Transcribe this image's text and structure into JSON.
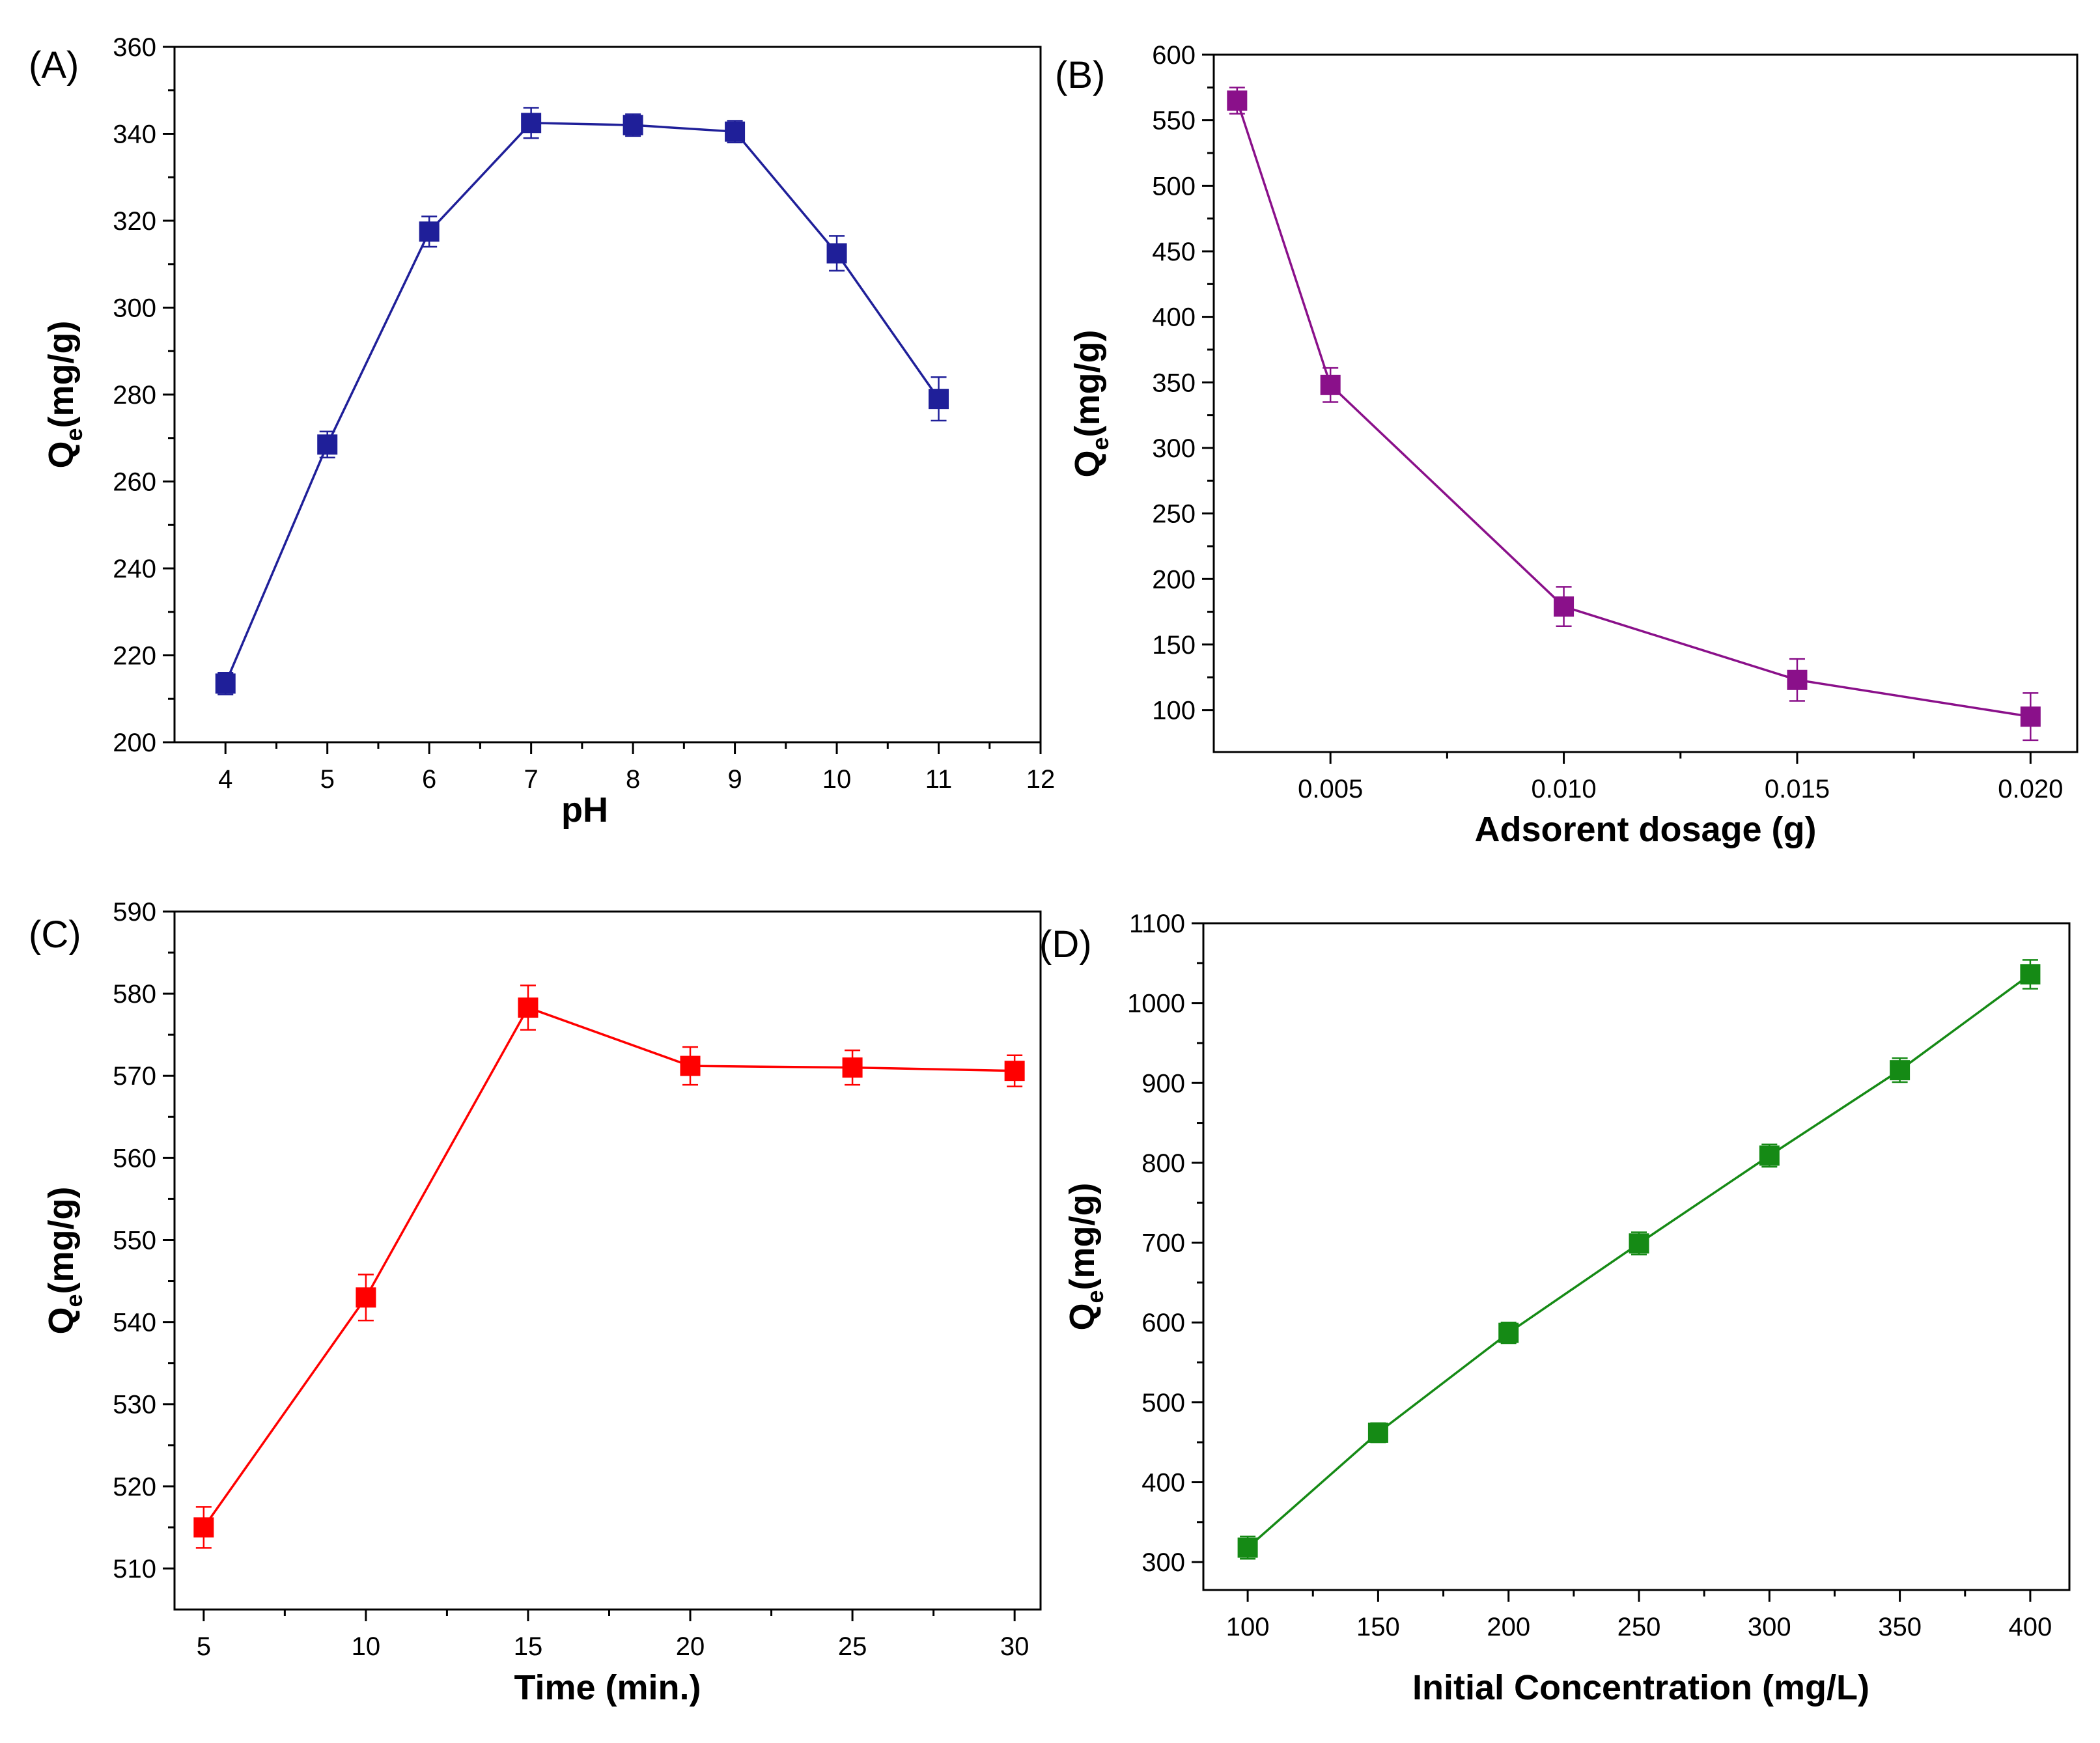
{
  "chart_data": [
    {
      "panel": "(A)",
      "type": "line",
      "xlabel": "pH",
      "ylabel_main": "Q",
      "ylabel_sub": "e",
      "ylabel_unit": "(mg/g)",
      "xlim": [
        3.5,
        12
      ],
      "ylim": [
        200,
        360
      ],
      "xticks": [
        4,
        5,
        6,
        7,
        8,
        9,
        10,
        11,
        12
      ],
      "xtick_labels": [
        "4",
        "5",
        "6",
        "7",
        "8",
        "9",
        "10",
        "11",
        "12"
      ],
      "yticks": [
        200,
        220,
        240,
        260,
        280,
        300,
        320,
        340,
        360
      ],
      "ytick_labels": [
        "200",
        "220",
        "240",
        "260",
        "280",
        "300",
        "320",
        "340",
        "360"
      ],
      "color": "#1f1f99",
      "x": [
        4,
        5,
        6,
        7,
        8,
        9,
        10,
        11
      ],
      "y": [
        213.5,
        268.5,
        317.5,
        342.5,
        342,
        340.5,
        312.5,
        279
      ],
      "yerr": [
        2.5,
        3,
        3.5,
        3.5,
        2.5,
        2.5,
        4,
        5
      ]
    },
    {
      "panel": "(B)",
      "type": "line",
      "xlabel": "Adsorent dosage (g)",
      "ylabel_main": "Q",
      "ylabel_sub": "e",
      "ylabel_unit": "(mg/g)",
      "xlim": [
        0.0025,
        0.021
      ],
      "ylim": [
        68,
        600
      ],
      "xticks": [
        0.005,
        0.01,
        0.015,
        0.02
      ],
      "xtick_labels": [
        "0.005",
        "0.010",
        "0.015",
        "0.020"
      ],
      "yticks": [
        100,
        150,
        200,
        250,
        300,
        350,
        400,
        450,
        500,
        550,
        600
      ],
      "ytick_labels": [
        "100",
        "150",
        "200",
        "250",
        "300",
        "350",
        "400",
        "450",
        "500",
        "550",
        "600"
      ],
      "color": "#8a108a",
      "x": [
        0.003,
        0.005,
        0.01,
        0.015,
        0.02
      ],
      "y": [
        565,
        348,
        179,
        123,
        95
      ],
      "yerr": [
        10,
        13,
        15,
        16,
        18
      ]
    },
    {
      "panel": "(C)",
      "type": "line",
      "xlabel": "Time (min.)",
      "ylabel_main": "Q",
      "ylabel_sub": "e",
      "ylabel_unit": "(mg/g)",
      "xlim": [
        4.1,
        30.8
      ],
      "ylim": [
        505,
        590
      ],
      "xticks": [
        5,
        10,
        15,
        20,
        25,
        30
      ],
      "xtick_labels": [
        "5",
        "10",
        "15",
        "20",
        "25",
        "30"
      ],
      "yticks": [
        510,
        520,
        530,
        540,
        550,
        560,
        570,
        580,
        590
      ],
      "ytick_labels": [
        "510",
        "520",
        "530",
        "540",
        "550",
        "560",
        "570",
        "580",
        "590"
      ],
      "color": "#ff0000",
      "x": [
        5,
        10,
        15,
        20,
        25,
        30
      ],
      "y": [
        515,
        543,
        578.3,
        571.2,
        571,
        570.6
      ],
      "yerr": [
        2.5,
        2.8,
        2.7,
        2.3,
        2.1,
        1.9
      ]
    },
    {
      "panel": "(D)",
      "type": "line",
      "xlabel": "Initial Concentration (mg/L)",
      "ylabel_main": "Q",
      "ylabel_sub": "e",
      "ylabel_unit": "(mg/g)",
      "xlim": [
        83,
        415
      ],
      "ylim": [
        265,
        1100
      ],
      "xticks": [
        100,
        150,
        200,
        250,
        300,
        350,
        400
      ],
      "xtick_labels": [
        "100",
        "150",
        "200",
        "250",
        "300",
        "350",
        "400"
      ],
      "yticks": [
        300,
        400,
        500,
        600,
        700,
        800,
        900,
        1000,
        1100
      ],
      "ytick_labels": [
        "300",
        "400",
        "500",
        "600",
        "700",
        "800",
        "900",
        "1000",
        "1100"
      ],
      "color": "#158a15",
      "x": [
        100,
        150,
        200,
        250,
        300,
        350,
        400
      ],
      "y": [
        318,
        462,
        587,
        699,
        809,
        916,
        1036
      ],
      "yerr": [
        14,
        12,
        13,
        14,
        14,
        15,
        18
      ]
    }
  ]
}
